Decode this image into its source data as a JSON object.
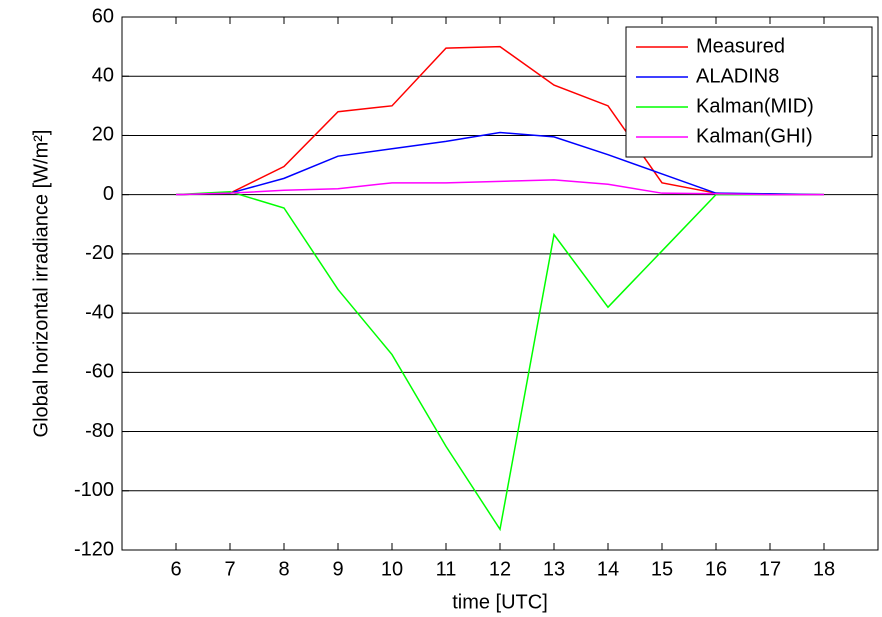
{
  "chart_data": {
    "type": "line",
    "xlabel": "time [UTC]",
    "ylabel": "Global horizontal irradiance [W/m²]",
    "x": [
      6,
      7,
      8,
      9,
      10,
      11,
      12,
      13,
      14,
      15,
      16,
      17,
      18
    ],
    "series": [
      {
        "name": "Measured",
        "color": "#ff0000",
        "values": [
          0,
          0.5,
          9.5,
          28,
          30,
          49.5,
          50,
          37,
          30,
          4,
          0.5,
          0,
          0
        ]
      },
      {
        "name": "ALADIN8",
        "color": "#0000ff",
        "values": [
          0,
          0.5,
          5.5,
          13,
          15.5,
          18,
          21,
          19.5,
          13.5,
          7,
          0.5,
          0.3,
          0
        ]
      },
      {
        "name": "Kalman(MID)",
        "color": "#00ff00",
        "values": [
          0,
          1,
          -4.5,
          -32,
          -54,
          -85,
          -113,
          -13.5,
          -38,
          -19,
          0,
          0,
          0
        ]
      },
      {
        "name": "Kalman(GHI)",
        "color": "#ff00ff",
        "values": [
          0,
          0.5,
          1.5,
          2,
          4,
          4,
          4.5,
          5,
          3.5,
          0.5,
          0.3,
          0,
          0
        ]
      }
    ],
    "xlim": [
      5,
      19
    ],
    "xticks": [
      6,
      7,
      8,
      9,
      10,
      11,
      12,
      13,
      14,
      15,
      16,
      17,
      18
    ],
    "ylim": [
      -120,
      60
    ],
    "yticks": [
      -120,
      -100,
      -80,
      -60,
      -40,
      -20,
      0,
      20,
      40,
      60
    ],
    "grid": "y",
    "legend": "upper right"
  }
}
